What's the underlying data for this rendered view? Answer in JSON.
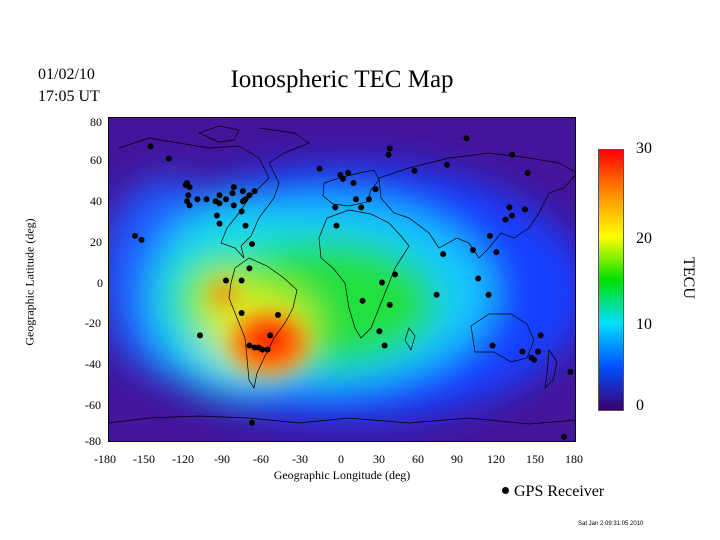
{
  "header": {
    "date": "01/02/10",
    "time": "17:05 UT",
    "title": "Ionospheric TEC Map"
  },
  "axes": {
    "x_label": "Geographic Longitude (deg)",
    "y_label": "Geographic Latitude (deg)",
    "x_ticks": [
      "-180",
      "-150",
      "-120",
      "-90",
      "-60",
      "-30",
      "0",
      "30",
      "60",
      "90",
      "120",
      "150",
      "180"
    ],
    "y_ticks": [
      "80",
      "60",
      "40",
      "20",
      "0",
      "-20",
      "-40",
      "-60",
      "-80"
    ],
    "x_range": [
      -180,
      180
    ],
    "y_range": [
      -80,
      80
    ]
  },
  "colorbar": {
    "unit": "TECU",
    "ticks": [
      "30",
      "20",
      "10",
      "0"
    ],
    "colors": [
      "#ff0000",
      "#ff8c00",
      "#ffff00",
      "#00e000",
      "#00e0ff",
      "#0050ff",
      "#3a0070"
    ]
  },
  "legend": {
    "label": "GPS Receiver"
  },
  "footer": {
    "timestamp": "Sat Jan  2 09:31:05 2010"
  },
  "stations": [
    [
      -148,
      66
    ],
    [
      -134,
      60
    ],
    [
      -120,
      48
    ],
    [
      -121,
      47
    ],
    [
      -118,
      46
    ],
    [
      -119,
      42
    ],
    [
      -120,
      39
    ],
    [
      -118,
      37
    ],
    [
      -112,
      40
    ],
    [
      -105,
      40
    ],
    [
      -98,
      39
    ],
    [
      -95,
      42
    ],
    [
      -90,
      40
    ],
    [
      -95,
      38
    ],
    [
      -85,
      43
    ],
    [
      -84,
      46
    ],
    [
      -77,
      44
    ],
    [
      -75,
      40
    ],
    [
      -84,
      37
    ],
    [
      -77,
      39
    ],
    [
      -72,
      42
    ],
    [
      -68,
      44
    ],
    [
      -78,
      34
    ],
    [
      -97,
      32
    ],
    [
      -95,
      28
    ],
    [
      -75,
      27
    ],
    [
      -70,
      18
    ],
    [
      -155,
      20
    ],
    [
      -160,
      22
    ],
    [
      -5,
      27
    ],
    [
      -6,
      36
    ],
    [
      -18,
      55
    ],
    [
      0,
      50
    ],
    [
      -2,
      52
    ],
    [
      4,
      53
    ],
    [
      8,
      48
    ],
    [
      10,
      40
    ],
    [
      14,
      36
    ],
    [
      20,
      40
    ],
    [
      25,
      45
    ],
    [
      35,
      62
    ],
    [
      36,
      65
    ],
    [
      55,
      54
    ],
    [
      80,
      57
    ],
    [
      95,
      70
    ],
    [
      130,
      62
    ],
    [
      142,
      53
    ],
    [
      125,
      30
    ],
    [
      128,
      36
    ],
    [
      130,
      32
    ],
    [
      140,
      35
    ],
    [
      113,
      22
    ],
    [
      118,
      14
    ],
    [
      100,
      15
    ],
    [
      104,
      1
    ],
    [
      112,
      -7
    ],
    [
      77,
      13
    ],
    [
      72,
      -7
    ],
    [
      15,
      -10
    ],
    [
      30,
      -1
    ],
    [
      40,
      3
    ],
    [
      36,
      -12
    ],
    [
      28,
      -25
    ],
    [
      32,
      -32
    ],
    [
      -90,
      0
    ],
    [
      -78,
      0
    ],
    [
      -72,
      6
    ],
    [
      -78,
      -16
    ],
    [
      -110,
      -27
    ],
    [
      -72,
      -32
    ],
    [
      -68,
      -33
    ],
    [
      -65,
      -33
    ],
    [
      -58,
      -34
    ],
    [
      -62,
      -34
    ],
    [
      -56,
      -27
    ],
    [
      -50,
      -17
    ],
    [
      115,
      -32
    ],
    [
      150,
      -35
    ],
    [
      152,
      -27
    ],
    [
      145,
      -38
    ],
    [
      138,
      -35
    ],
    [
      147,
      -39
    ],
    [
      175,
      -45
    ],
    [
      170,
      -77
    ],
    [
      -70,
      -70
    ]
  ]
}
